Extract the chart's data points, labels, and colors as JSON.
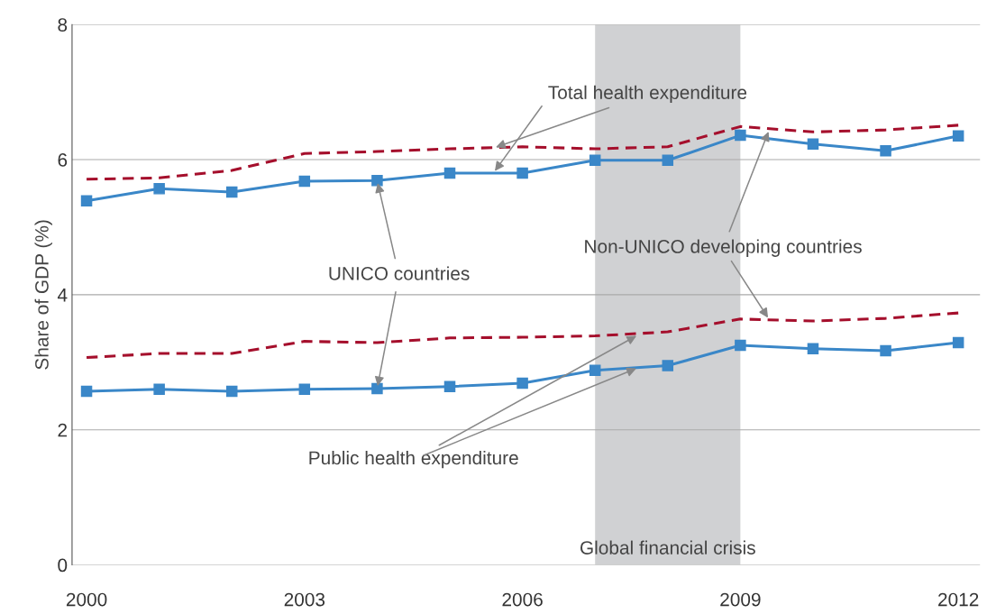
{
  "chart_data": {
    "type": "line",
    "ylabel": "Share of GDP (%)",
    "x": [
      2000,
      2001,
      2002,
      2003,
      2004,
      2005,
      2006,
      2007,
      2008,
      2009,
      2010,
      2011,
      2012
    ],
    "xlim": [
      1999.8,
      2012.3
    ],
    "xticks": [
      2000,
      2003,
      2006,
      2009,
      2012
    ],
    "ylim": [
      0,
      8
    ],
    "yticks": [
      0,
      2,
      4,
      6,
      8
    ],
    "grid": "y",
    "legend": false,
    "series": [
      {
        "color": "#a50f2c",
        "line_style": "dashed",
        "marker": "none",
        "values": [
          5.71,
          5.73,
          5.84,
          6.09,
          6.12,
          6.16,
          6.19,
          6.16,
          6.19,
          6.49,
          6.41,
          6.44,
          6.51
        ]
      },
      {
        "color": "#3a87c8",
        "line_style": "solid",
        "marker": "square",
        "values": [
          5.39,
          5.57,
          5.52,
          5.68,
          5.69,
          5.8,
          5.8,
          5.99,
          5.99,
          6.36,
          6.23,
          6.13,
          6.35
        ]
      },
      {
        "color": "#a50f2c",
        "line_style": "dashed",
        "marker": "none",
        "values": [
          3.07,
          3.13,
          3.13,
          3.31,
          3.29,
          3.36,
          3.37,
          3.39,
          3.45,
          3.64,
          3.61,
          3.65,
          3.73
        ]
      },
      {
        "color": "#3a87c8",
        "line_style": "solid",
        "marker": "square",
        "values": [
          2.57,
          2.6,
          2.57,
          2.6,
          2.61,
          2.64,
          2.69,
          2.88,
          2.95,
          3.25,
          3.2,
          3.17,
          3.29
        ]
      }
    ],
    "bands": [
      {
        "axis": "x",
        "from": 2007,
        "to": 2009,
        "label": "Global financial crisis",
        "color": "#d0d1d3"
      }
    ],
    "annotations": [
      {
        "text": "Total health expenditure",
        "x": 2005.6,
        "y": 6.17
      },
      {
        "text": "UNICO countries",
        "x": 2004,
        "y": 5.69
      },
      {
        "text": "Non-UNICO developing countries",
        "x": 2009.4,
        "y": 6.45
      },
      {
        "text": "Public health expenditure",
        "x": 2007.6,
        "y": 3.41
      }
    ]
  }
}
